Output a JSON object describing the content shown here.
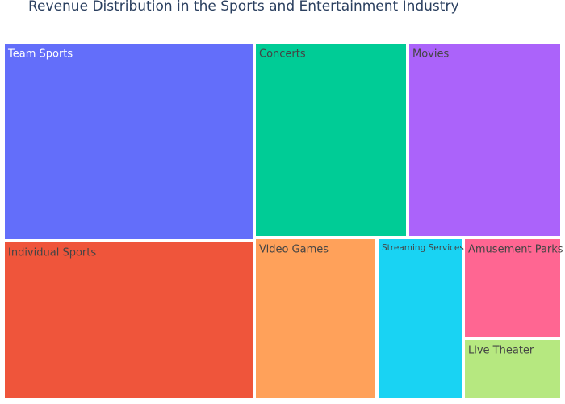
{
  "chart_data": {
    "type": "treemap",
    "title": "Revenue Distribution in the Sports and Entertainment Industry",
    "tiles": [
      {
        "label": "Team Sports",
        "color": "#636efa",
        "text_color": "#ffffff"
      },
      {
        "label": "Individual Sports",
        "color": "#ef553b",
        "text_color": "#444444"
      },
      {
        "label": "Concerts",
        "color": "#00cc96",
        "text_color": "#444444"
      },
      {
        "label": "Movies",
        "color": "#ab63fa",
        "text_color": "#444444"
      },
      {
        "label": "Video Games",
        "color": "#ffa15a",
        "text_color": "#444444"
      },
      {
        "label": "Streaming Services",
        "color": "#19d3f3",
        "text_color": "#444444"
      },
      {
        "label": "Amusement Parks",
        "color": "#ff6692",
        "text_color": "#444444"
      },
      {
        "label": "Live Theater",
        "color": "#b6e880",
        "text_color": "#444444"
      }
    ]
  }
}
